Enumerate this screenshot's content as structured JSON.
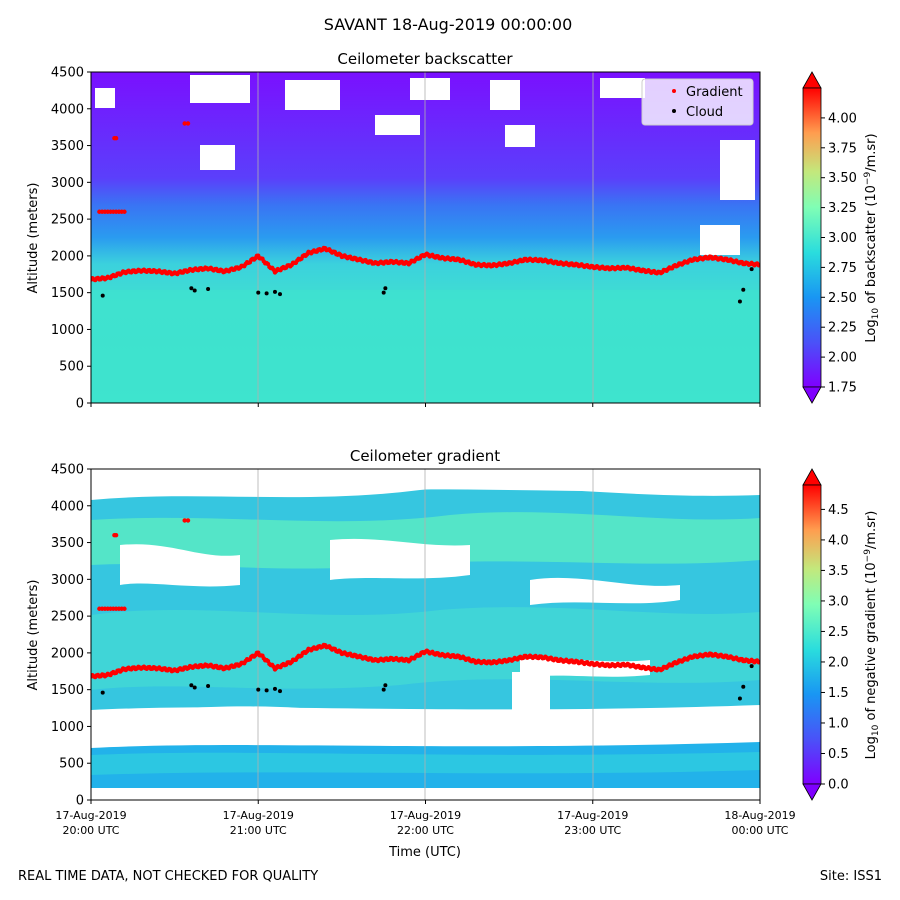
{
  "figure": {
    "suptitle": "SAVANT 18-Aug-2019 00:00:00",
    "footer_left": "REAL TIME DATA, NOT CHECKED FOR QUALITY",
    "footer_right": "Site: ISS1"
  },
  "legend": {
    "gradient_label": "Gradient",
    "cloud_label": "Cloud",
    "gradient_color": "#ff0000",
    "cloud_color": "#000000",
    "placement": "top-right"
  },
  "colormap": "rainbow",
  "chart_data": [
    {
      "type": "heatmap",
      "title": "Ceilometer backscatter",
      "ylabel": "Altitude (meters)",
      "xlabel": "",
      "ylim": [
        0,
        4500
      ],
      "yticks": [
        0,
        500,
        1000,
        1500,
        2000,
        2500,
        3000,
        3500,
        4000,
        4500
      ],
      "xlim_hours": [
        20,
        24
      ],
      "colorbar": {
        "label": "Log10 of backscatter (10^-9/m.sr)",
        "vmin": 1.75,
        "vmax": 4.25,
        "ticks": [
          "1.75",
          "2.00",
          "2.25",
          "2.50",
          "2.75",
          "3.00",
          "3.25",
          "3.50",
          "3.75",
          "4.00"
        ]
      }
    },
    {
      "type": "heatmap",
      "title": "Ceilometer gradient",
      "ylabel": "Altitude (meters)",
      "xlabel": "Time (UTC)",
      "ylim": [
        0,
        4500
      ],
      "yticks": [
        0,
        500,
        1000,
        1500,
        2000,
        2500,
        3000,
        3500,
        4000,
        4500
      ],
      "xlim_hours": [
        20,
        24
      ],
      "colorbar": {
        "label": "Log10 of negative gradient (10^-9/m.sr)",
        "vmin": 0.0,
        "vmax": 4.9,
        "ticks": [
          "0.0",
          "0.5",
          "1.0",
          "1.5",
          "2.0",
          "2.5",
          "3.0",
          "3.5",
          "4.0",
          "4.5"
        ]
      }
    }
  ],
  "xticks": [
    {
      "hour": 20,
      "date": "17-Aug-2019",
      "time": "20:00 UTC"
    },
    {
      "hour": 21,
      "date": "17-Aug-2019",
      "time": "21:00 UTC"
    },
    {
      "hour": 22,
      "date": "17-Aug-2019",
      "time": "22:00 UTC"
    },
    {
      "hour": 23,
      "date": "17-Aug-2019",
      "time": "23:00 UTC"
    },
    {
      "hour": 24,
      "date": "18-Aug-2019",
      "time": "00:00 UTC"
    }
  ],
  "gradient_series": {
    "hours": [
      20.0,
      20.1,
      20.2,
      20.3,
      20.4,
      20.5,
      20.6,
      20.7,
      20.8,
      20.9,
      21.0,
      21.1,
      21.2,
      21.3,
      21.4,
      21.5,
      21.6,
      21.7,
      21.8,
      21.9,
      22.0,
      22.1,
      22.2,
      22.3,
      22.4,
      22.5,
      22.6,
      22.7,
      22.8,
      22.9,
      23.0,
      23.1,
      23.2,
      23.3,
      23.4,
      23.5,
      23.6,
      23.7,
      23.8,
      23.9,
      24.0
    ],
    "altitudes": [
      1680,
      1700,
      1780,
      1800,
      1790,
      1760,
      1810,
      1830,
      1790,
      1850,
      2000,
      1790,
      1880,
      2040,
      2100,
      2000,
      1950,
      1900,
      1920,
      1900,
      2020,
      1970,
      1950,
      1880,
      1870,
      1900,
      1950,
      1940,
      1900,
      1880,
      1850,
      1830,
      1840,
      1800,
      1770,
      1870,
      1950,
      1980,
      1950,
      1900,
      1880
    ]
  },
  "gradient_segments_extra": [
    {
      "h0": 20.05,
      "h1": 20.2,
      "alt": 2600
    },
    {
      "h0": 20.56,
      "h1": 20.58,
      "alt": 3800
    },
    {
      "h0": 20.14,
      "h1": 20.15,
      "alt": 3600
    }
  ],
  "cloud_points": [
    {
      "hour": 20.07,
      "alt": 1460
    },
    {
      "hour": 20.6,
      "alt": 1560
    },
    {
      "hour": 20.62,
      "alt": 1530
    },
    {
      "hour": 20.7,
      "alt": 1550
    },
    {
      "hour": 21.0,
      "alt": 1500
    },
    {
      "hour": 21.05,
      "alt": 1490
    },
    {
      "hour": 21.1,
      "alt": 1510
    },
    {
      "hour": 21.13,
      "alt": 1480
    },
    {
      "hour": 21.75,
      "alt": 1500
    },
    {
      "hour": 21.76,
      "alt": 1560
    },
    {
      "hour": 23.88,
      "alt": 1380
    },
    {
      "hour": 23.9,
      "alt": 1540
    },
    {
      "hour": 23.95,
      "alt": 1820
    }
  ]
}
